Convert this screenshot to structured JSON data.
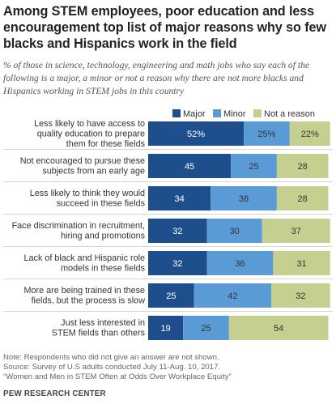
{
  "title": "Among STEM employees, poor education and less encouragement  top list of major reasons why so few blacks and Hispanics work in the field",
  "subtitle": "% of those in science, technology, engineering and math jobs who say each of the following is a major, a minor or not a reason why there are not more blacks and Hispanics working in STEM jobs in this country",
  "chart_data": {
    "type": "bar",
    "orientation": "horizontal",
    "stacked": true,
    "categories": [
      "Less likely to have access to quality education to prepare them for these fields",
      "Not encouraged to pursue these subjects from an early age",
      "Less likely to think they would succeed in these fields",
      "Face discrimination in recruitment, hiring and promotions",
      "Lack of black and Hispanic role models in these fields",
      "More are being trained in these fields, but the process is slow",
      "Just less interested in STEM fields than others"
    ],
    "category_lines": [
      [
        "Less likely to have access to",
        "quality education to prepare",
        "them for these fields"
      ],
      [
        "Not encouraged to pursue these",
        "subjects from an early age"
      ],
      [
        "Less likely to think they would",
        "succeed in these fields"
      ],
      [
        "Face discrimination in recruitment,",
        "hiring and promotions"
      ],
      [
        "Lack of black and Hispanic role",
        "models in these fields"
      ],
      [
        "More are being trained in these",
        "fields, but the process is slow"
      ],
      [
        "Just less interested in",
        "STEM fields than others"
      ]
    ],
    "series": [
      {
        "name": "Major",
        "color": "#1f4e8c",
        "label_color": "#ffffff",
        "values": [
          52,
          45,
          34,
          32,
          32,
          25,
          19
        ]
      },
      {
        "name": "Minor",
        "color": "#5b9bd5",
        "label_color": "#333333",
        "values": [
          25,
          25,
          36,
          30,
          36,
          42,
          25
        ]
      },
      {
        "name": "Not a reason",
        "color": "#c5cf8f",
        "label_color": "#333333",
        "values": [
          22,
          28,
          28,
          37,
          31,
          32,
          54
        ]
      }
    ],
    "value_labels": [
      [
        "52%",
        "25%",
        "22%"
      ],
      [
        "45",
        "25",
        "28"
      ],
      [
        "34",
        "36",
        "28"
      ],
      [
        "32",
        "30",
        "37"
      ],
      [
        "32",
        "36",
        "31"
      ],
      [
        "25",
        "42",
        "32"
      ],
      [
        "19",
        "25",
        "54"
      ]
    ],
    "xlim": [
      0,
      100
    ],
    "legend_position": "top"
  },
  "notes": [
    "Note: Respondents who did not give an answer are not shown.",
    "Source: Survey of U.S adults conducted July 11-Aug. 10, 2017.",
    "“Women and Men in STEM Often at Odds Over Workplace Equity”"
  ],
  "brand": "PEW RESEARCH CENTER"
}
